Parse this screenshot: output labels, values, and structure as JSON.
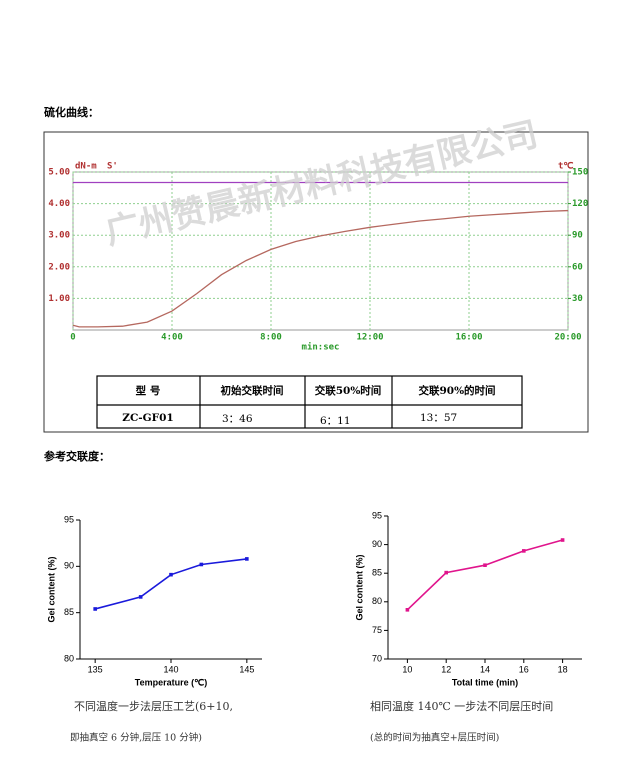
{
  "document": {
    "heading1": "硫化曲线：",
    "heading2": "参考交联度：",
    "watermark": "广州赞晨新材料科技有限公司",
    "table": {
      "header": [
        "型 号",
        "初始交联时间",
        "交联50%时间",
        "交联90%的时间"
      ],
      "rows": [
        [
          "ZC-GF01",
          "3：46",
          "6：11",
          "13：57"
        ]
      ]
    },
    "captions": [
      [
        "不同温度一步法层压工艺(6+10,",
        "即抽真空 6 分钟,层压 10 分钟)"
      ],
      [
        "相同温度 140℃ 一步法不同层压时间",
        "(总的时间为抽真空+层压时间)"
      ]
    ]
  },
  "chart_data": [
    {
      "type": "line",
      "y_label": "dN-m",
      "x_label": "min:sec",
      "xlim": [
        0,
        20
      ],
      "xticks": [
        0,
        {
          "value": 4,
          "label": "4:00"
        },
        {
          "value": 8,
          "label": "8:00"
        },
        {
          "value": 12,
          "label": "12:00"
        },
        {
          "value": 16,
          "label": "16:00"
        },
        {
          "value": 20,
          "label": "20:00"
        }
      ],
      "ylim": [
        0,
        5
      ],
      "yticks": [
        {
          "value": 1,
          "label": "1.00"
        },
        {
          "value": 2,
          "label": "2.00"
        },
        {
          "value": 3,
          "label": "3.00"
        },
        {
          "value": 4,
          "label": "4.00"
        },
        {
          "value": 5,
          "label": "5.00"
        }
      ],
      "y2lim": [
        0,
        150
      ],
      "y2ticks": [
        30,
        60,
        90,
        120,
        150
      ],
      "grid": true,
      "x": [
        0,
        0.25,
        1,
        2,
        3,
        4,
        5,
        6,
        7,
        8,
        9,
        10,
        11,
        12,
        13,
        14,
        15,
        16,
        17,
        18,
        19,
        20
      ],
      "series": [
        {
          "name": "S'",
          "color": "#b5685f",
          "values": [
            0.15,
            0.1,
            0.1,
            0.12,
            0.25,
            0.6,
            1.15,
            1.75,
            2.2,
            2.55,
            2.8,
            2.98,
            3.12,
            3.25,
            3.35,
            3.45,
            3.52,
            3.6,
            3.65,
            3.7,
            3.75,
            3.78
          ]
        },
        {
          "name": "t℃",
          "color": "#a040c0",
          "axis": "y2",
          "values": [
            140,
            140,
            140,
            140,
            140,
            140,
            140,
            140,
            140,
            140,
            140,
            140,
            140,
            140,
            140,
            140,
            140,
            140,
            140,
            140,
            140,
            140
          ]
        }
      ]
    },
    {
      "type": "line",
      "x_label": "Temperature (℃)",
      "y_label": "Gel content (%)",
      "xlim": [
        134,
        146
      ],
      "xticks": [
        135,
        140,
        145
      ],
      "ylim": [
        80,
        95
      ],
      "yticks": [
        80,
        85,
        90,
        95
      ],
      "grid": false,
      "x": [
        135,
        138,
        140,
        142,
        145
      ],
      "series": [
        {
          "color": "#1a1adb",
          "values": [
            85.4,
            86.7,
            89.1,
            90.2,
            90.8
          ]
        }
      ]
    },
    {
      "type": "line",
      "x_label": "Total time (min)",
      "y_label": "Gel content (%)",
      "xlim": [
        9,
        19
      ],
      "xticks": [
        10,
        12,
        14,
        16,
        18
      ],
      "ylim": [
        70,
        95
      ],
      "yticks": [
        70,
        75,
        80,
        85,
        90,
        95
      ],
      "grid": false,
      "x": [
        10,
        12,
        14,
        16,
        18
      ],
      "series": [
        {
          "color": "#e0148c",
          "values": [
            78.6,
            85.1,
            86.4,
            88.9,
            90.8
          ]
        }
      ]
    }
  ]
}
